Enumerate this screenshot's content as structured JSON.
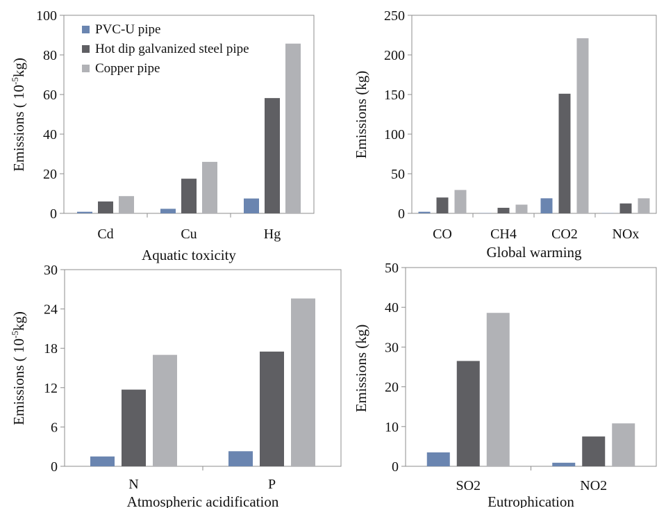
{
  "chart_data": [
    {
      "type": "bar",
      "xlabel": "Aquatic toxicity",
      "ylabel": "Emissions ( 10",
      "ylabel_sup": "-5",
      "ylabel_tail": "kg)",
      "categories": [
        "Cd",
        "Cu",
        "Hg"
      ],
      "ylim": [
        0,
        100
      ],
      "yticks": [
        0,
        20,
        40,
        60,
        80,
        100
      ],
      "legend": "top-left",
      "series": [
        {
          "name": "PVC-U pipe",
          "values": [
            0.8,
            2.3,
            7.5
          ]
        },
        {
          "name": "Hot dip galvanized steel pipe",
          "values": [
            6.0,
            17.5,
            58.2
          ]
        },
        {
          "name": "Copper pipe",
          "values": [
            8.7,
            26.0,
            85.7
          ]
        }
      ]
    },
    {
      "type": "bar",
      "xlabel": "Global warming",
      "ylabel": "Emissions (kg)",
      "categories": [
        "CO",
        "CH4",
        "CO2",
        "NOx"
      ],
      "ylim": [
        0,
        250
      ],
      "yticks": [
        0,
        50,
        100,
        150,
        200,
        250
      ],
      "series": [
        {
          "values": [
            2,
            0.3,
            19,
            0.3
          ]
        },
        {
          "values": [
            20,
            7,
            151,
            12.5
          ]
        },
        {
          "values": [
            29.5,
            11,
            221,
            19
          ]
        }
      ]
    },
    {
      "type": "bar",
      "xlabel": "Atmospheric acidification",
      "ylabel": "Emissions ( 10",
      "ylabel_sup": "-5",
      "ylabel_tail": "kg)",
      "categories": [
        "N",
        "P"
      ],
      "ylim": [
        0,
        30
      ],
      "yticks": [
        0,
        6,
        12,
        18,
        24,
        30
      ],
      "series": [
        {
          "values": [
            1.5,
            2.3
          ]
        },
        {
          "values": [
            11.7,
            17.5
          ]
        },
        {
          "values": [
            17.0,
            25.6
          ]
        }
      ]
    },
    {
      "type": "bar",
      "xlabel": "Eutrophication",
      "ylabel": "Emissions (kg)",
      "categories": [
        "SO2",
        "NO2"
      ],
      "ylim": [
        0,
        50
      ],
      "yticks": [
        0,
        10,
        20,
        30,
        40,
        50
      ],
      "series": [
        {
          "values": [
            3.5,
            0.9
          ]
        },
        {
          "values": [
            26.5,
            7.5
          ]
        },
        {
          "values": [
            38.6,
            10.8
          ]
        }
      ]
    }
  ],
  "colors": {
    "pvc": "#6a85b0",
    "steel": "#5f5f63",
    "copper": "#b1b2b6",
    "frame": "#8c8c8c",
    "text": "#111111"
  }
}
